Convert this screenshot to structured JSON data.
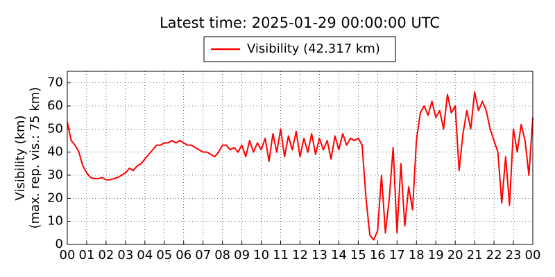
{
  "chart_data": {
    "type": "line",
    "title": "Latest time: 2025-01-29 00:00:00 UTC",
    "ylabel": [
      "Visibility (km)",
      "(max. rep. vis.: 75 km)"
    ],
    "series": [
      {
        "name": "Visibility (42.317 km)",
        "color": "#ff0000",
        "x": [
          0,
          0.2,
          0.4,
          0.6,
          0.8,
          1,
          1.2,
          1.4,
          1.6,
          1.8,
          2,
          2.2,
          2.4,
          2.6,
          2.8,
          3,
          3.2,
          3.4,
          3.6,
          3.8,
          4,
          4.2,
          4.4,
          4.6,
          4.8,
          5,
          5.2,
          5.4,
          5.6,
          5.8,
          6,
          6.2,
          6.4,
          6.6,
          6.8,
          7,
          7.2,
          7.4,
          7.6,
          7.8,
          8,
          8.2,
          8.4,
          8.6,
          8.8,
          9,
          9.2,
          9.4,
          9.6,
          9.8,
          10,
          10.2,
          10.4,
          10.6,
          10.8,
          11,
          11.2,
          11.4,
          11.6,
          11.8,
          12,
          12.2,
          12.4,
          12.6,
          12.8,
          13,
          13.2,
          13.4,
          13.6,
          13.8,
          14,
          14.2,
          14.4,
          14.6,
          14.8,
          15,
          15.2,
          15.4,
          15.6,
          15.8,
          16,
          16.2,
          16.4,
          16.6,
          16.8,
          17,
          17.2,
          17.4,
          17.6,
          17.8,
          18,
          18.2,
          18.4,
          18.6,
          18.8,
          19,
          19.2,
          19.4,
          19.6,
          19.8,
          20,
          20.2,
          20.4,
          20.6,
          20.8,
          21,
          21.2,
          21.4,
          21.6,
          21.8,
          22,
          22.2,
          22.4,
          22.6,
          22.8,
          23,
          23.2,
          23.4,
          23.6,
          23.8,
          24
        ],
        "values": [
          53,
          45,
          43,
          40,
          34,
          31,
          29,
          28.5,
          28.5,
          29,
          28,
          28,
          28.5,
          29,
          30,
          31,
          33,
          32,
          34,
          35,
          37,
          39,
          41,
          43,
          43,
          44,
          44,
          45,
          44,
          45,
          44,
          43,
          43,
          42,
          41,
          40,
          40,
          39,
          38,
          40,
          43,
          43,
          41,
          42,
          40,
          43,
          38,
          45,
          40,
          44,
          41,
          46,
          36,
          48,
          40,
          50,
          38,
          47,
          41,
          49,
          38,
          46,
          40,
          48,
          39,
          46,
          41,
          45,
          37,
          47,
          41,
          48,
          43,
          46,
          45,
          46,
          43,
          20,
          4,
          2,
          6,
          30,
          5,
          20,
          42,
          5,
          35,
          8,
          25,
          15,
          45,
          57,
          60,
          56,
          62,
          55,
          58,
          50,
          65,
          57,
          60,
          32,
          48,
          58,
          50,
          66,
          58,
          62,
          58,
          50,
          45,
          40,
          18,
          38,
          17,
          50,
          40,
          52,
          45,
          30,
          55
        ]
      }
    ],
    "xlim": [
      0,
      24
    ],
    "ylim": [
      0,
      75
    ],
    "xticks": [
      {
        "value": 0,
        "label": "00"
      },
      {
        "value": 1,
        "label": "01"
      },
      {
        "value": 2,
        "label": "02"
      },
      {
        "value": 3,
        "label": "03"
      },
      {
        "value": 4,
        "label": "04"
      },
      {
        "value": 5,
        "label": "05"
      },
      {
        "value": 6,
        "label": "06"
      },
      {
        "value": 7,
        "label": "07"
      },
      {
        "value": 8,
        "label": "08"
      },
      {
        "value": 9,
        "label": "09"
      },
      {
        "value": 10,
        "label": "10"
      },
      {
        "value": 11,
        "label": "11"
      },
      {
        "value": 12,
        "label": "12"
      },
      {
        "value": 13,
        "label": "13"
      },
      {
        "value": 14,
        "label": "14"
      },
      {
        "value": 15,
        "label": "15"
      },
      {
        "value": 16,
        "label": "16"
      },
      {
        "value": 17,
        "label": "17"
      },
      {
        "value": 18,
        "label": "18"
      },
      {
        "value": 19,
        "label": "19"
      },
      {
        "value": 20,
        "label": "20"
      },
      {
        "value": 21,
        "label": "21"
      },
      {
        "value": 22,
        "label": "22"
      },
      {
        "value": 23,
        "label": "23"
      },
      {
        "value": 24,
        "label": "00"
      }
    ],
    "yticks": [
      0,
      10,
      20,
      30,
      40,
      50,
      60,
      70
    ],
    "grid": true
  }
}
